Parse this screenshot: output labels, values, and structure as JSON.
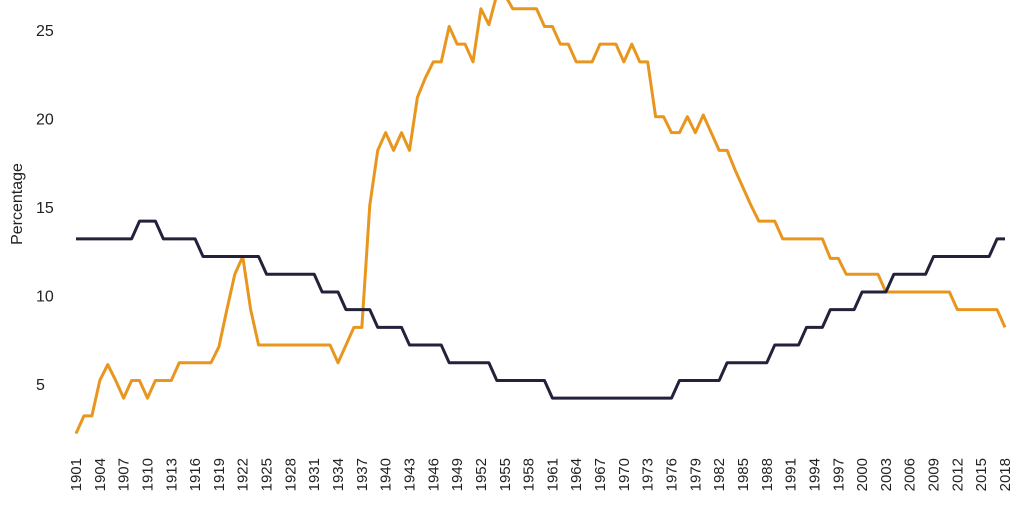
{
  "chart_data": {
    "type": "line",
    "title": "",
    "xlabel": "",
    "ylabel": "Percentage",
    "ylim": [
      1,
      27
    ],
    "y_ticks": [
      5,
      10,
      15,
      20,
      25
    ],
    "x_tick_labels": [
      "1901",
      "1904",
      "1907",
      "1910",
      "1913",
      "1916",
      "1919",
      "1922",
      "1925",
      "1928",
      "1931",
      "1934",
      "1937",
      "1940",
      "1943",
      "1946",
      "1949",
      "1952",
      "1955",
      "1958",
      "1961",
      "1964",
      "1967",
      "1970",
      "1973",
      "1976",
      "1979",
      "1982",
      "1985",
      "1988",
      "1991",
      "1994",
      "1997",
      "2000",
      "2003",
      "2006",
      "2009",
      "2012",
      "2015",
      "2018"
    ],
    "grid": false,
    "legend": "none",
    "series": [
      {
        "color": "#e8961e",
        "points": [
          [
            1901,
            2.2
          ],
          [
            1902,
            3.2
          ],
          [
            1903,
            3.2
          ],
          [
            1904,
            5.2
          ],
          [
            1905,
            6.1
          ],
          [
            1906,
            5.2
          ],
          [
            1907,
            4.2
          ],
          [
            1908,
            5.2
          ],
          [
            1909,
            5.2
          ],
          [
            1910,
            4.2
          ],
          [
            1911,
            5.2
          ],
          [
            1912,
            5.2
          ],
          [
            1913,
            5.2
          ],
          [
            1914,
            6.2
          ],
          [
            1915,
            6.2
          ],
          [
            1916,
            6.2
          ],
          [
            1917,
            6.2
          ],
          [
            1918,
            6.2
          ],
          [
            1919,
            7.1
          ],
          [
            1920,
            9.2
          ],
          [
            1921,
            11.2
          ],
          [
            1922,
            12.2
          ],
          [
            1923,
            9.2
          ],
          [
            1924,
            7.2
          ],
          [
            1925,
            7.2
          ],
          [
            1926,
            7.2
          ],
          [
            1927,
            7.2
          ],
          [
            1928,
            7.2
          ],
          [
            1929,
            7.2
          ],
          [
            1930,
            7.2
          ],
          [
            1931,
            7.2
          ],
          [
            1932,
            7.2
          ],
          [
            1933,
            7.2
          ],
          [
            1934,
            6.2
          ],
          [
            1935,
            7.2
          ],
          [
            1936,
            8.2
          ],
          [
            1937,
            8.2
          ],
          [
            1938,
            15.1
          ],
          [
            1939,
            18.2
          ],
          [
            1940,
            19.2
          ],
          [
            1941,
            18.2
          ],
          [
            1942,
            19.2
          ],
          [
            1943,
            18.2
          ],
          [
            1944,
            21.2
          ],
          [
            1945,
            22.3
          ],
          [
            1946,
            23.2
          ],
          [
            1947,
            23.2
          ],
          [
            1948,
            25.2
          ],
          [
            1949,
            24.2
          ],
          [
            1950,
            24.2
          ],
          [
            1951,
            23.2
          ],
          [
            1952,
            26.2
          ],
          [
            1953,
            25.3
          ],
          [
            1954,
            27.0
          ],
          [
            1955,
            27.0
          ],
          [
            1956,
            26.2
          ],
          [
            1957,
            26.2
          ],
          [
            1958,
            26.2
          ],
          [
            1959,
            26.2
          ],
          [
            1960,
            25.2
          ],
          [
            1961,
            25.2
          ],
          [
            1962,
            24.2
          ],
          [
            1963,
            24.2
          ],
          [
            1964,
            23.2
          ],
          [
            1965,
            23.2
          ],
          [
            1966,
            23.2
          ],
          [
            1967,
            24.2
          ],
          [
            1968,
            24.2
          ],
          [
            1969,
            24.2
          ],
          [
            1970,
            23.2
          ],
          [
            1971,
            24.2
          ],
          [
            1972,
            23.2
          ],
          [
            1973,
            23.2
          ],
          [
            1974,
            20.1
          ],
          [
            1975,
            20.1
          ],
          [
            1976,
            19.2
          ],
          [
            1977,
            19.2
          ],
          [
            1978,
            20.1
          ],
          [
            1979,
            19.2
          ],
          [
            1980,
            20.2
          ],
          [
            1981,
            19.2
          ],
          [
            1982,
            18.2
          ],
          [
            1983,
            18.2
          ],
          [
            1984,
            17.1
          ],
          [
            1985,
            16.1
          ],
          [
            1986,
            15.1
          ],
          [
            1987,
            14.2
          ],
          [
            1988,
            14.2
          ],
          [
            1989,
            14.2
          ],
          [
            1990,
            13.2
          ],
          [
            1991,
            13.2
          ],
          [
            1992,
            13.2
          ],
          [
            1993,
            13.2
          ],
          [
            1994,
            13.2
          ],
          [
            1995,
            13.2
          ],
          [
            1996,
            12.1
          ],
          [
            1997,
            12.1
          ],
          [
            1998,
            11.2
          ],
          [
            1999,
            11.2
          ],
          [
            2000,
            11.2
          ],
          [
            2001,
            11.2
          ],
          [
            2002,
            11.2
          ],
          [
            2003,
            10.2
          ],
          [
            2004,
            10.2
          ],
          [
            2005,
            10.2
          ],
          [
            2006,
            10.2
          ],
          [
            2007,
            10.2
          ],
          [
            2008,
            10.2
          ],
          [
            2009,
            10.2
          ],
          [
            2010,
            10.2
          ],
          [
            2011,
            10.2
          ],
          [
            2012,
            9.2
          ],
          [
            2013,
            9.2
          ],
          [
            2014,
            9.2
          ],
          [
            2015,
            9.2
          ],
          [
            2016,
            9.2
          ],
          [
            2017,
            9.2
          ],
          [
            2018,
            8.2
          ]
        ]
      },
      {
        "color": "#23223a",
        "points": [
          [
            1901,
            13.2
          ],
          [
            1902,
            13.2
          ],
          [
            1903,
            13.2
          ],
          [
            1904,
            13.2
          ],
          [
            1905,
            13.2
          ],
          [
            1906,
            13.2
          ],
          [
            1907,
            13.2
          ],
          [
            1908,
            13.2
          ],
          [
            1909,
            14.2
          ],
          [
            1910,
            14.2
          ],
          [
            1911,
            14.2
          ],
          [
            1912,
            13.2
          ],
          [
            1913,
            13.2
          ],
          [
            1914,
            13.2
          ],
          [
            1915,
            13.2
          ],
          [
            1916,
            13.2
          ],
          [
            1917,
            12.2
          ],
          [
            1918,
            12.2
          ],
          [
            1919,
            12.2
          ],
          [
            1920,
            12.2
          ],
          [
            1921,
            12.2
          ],
          [
            1922,
            12.2
          ],
          [
            1923,
            12.2
          ],
          [
            1924,
            12.2
          ],
          [
            1925,
            11.2
          ],
          [
            1926,
            11.2
          ],
          [
            1927,
            11.2
          ],
          [
            1928,
            11.2
          ],
          [
            1929,
            11.2
          ],
          [
            1930,
            11.2
          ],
          [
            1931,
            11.2
          ],
          [
            1932,
            10.2
          ],
          [
            1933,
            10.2
          ],
          [
            1934,
            10.2
          ],
          [
            1935,
            9.2
          ],
          [
            1936,
            9.2
          ],
          [
            1937,
            9.2
          ],
          [
            1938,
            9.2
          ],
          [
            1939,
            8.2
          ],
          [
            1940,
            8.2
          ],
          [
            1941,
            8.2
          ],
          [
            1942,
            8.2
          ],
          [
            1943,
            7.2
          ],
          [
            1944,
            7.2
          ],
          [
            1945,
            7.2
          ],
          [
            1946,
            7.2
          ],
          [
            1947,
            7.2
          ],
          [
            1948,
            6.2
          ],
          [
            1949,
            6.2
          ],
          [
            1950,
            6.2
          ],
          [
            1951,
            6.2
          ],
          [
            1952,
            6.2
          ],
          [
            1953,
            6.2
          ],
          [
            1954,
            5.2
          ],
          [
            1955,
            5.2
          ],
          [
            1956,
            5.2
          ],
          [
            1957,
            5.2
          ],
          [
            1958,
            5.2
          ],
          [
            1959,
            5.2
          ],
          [
            1960,
            5.2
          ],
          [
            1961,
            4.2
          ],
          [
            1962,
            4.2
          ],
          [
            1963,
            4.2
          ],
          [
            1964,
            4.2
          ],
          [
            1965,
            4.2
          ],
          [
            1966,
            4.2
          ],
          [
            1967,
            4.2
          ],
          [
            1968,
            4.2
          ],
          [
            1969,
            4.2
          ],
          [
            1970,
            4.2
          ],
          [
            1971,
            4.2
          ],
          [
            1972,
            4.2
          ],
          [
            1973,
            4.2
          ],
          [
            1974,
            4.2
          ],
          [
            1975,
            4.2
          ],
          [
            1976,
            4.2
          ],
          [
            1977,
            5.2
          ],
          [
            1978,
            5.2
          ],
          [
            1979,
            5.2
          ],
          [
            1980,
            5.2
          ],
          [
            1981,
            5.2
          ],
          [
            1982,
            5.2
          ],
          [
            1983,
            6.2
          ],
          [
            1984,
            6.2
          ],
          [
            1985,
            6.2
          ],
          [
            1986,
            6.2
          ],
          [
            1987,
            6.2
          ],
          [
            1988,
            6.2
          ],
          [
            1989,
            7.2
          ],
          [
            1990,
            7.2
          ],
          [
            1991,
            7.2
          ],
          [
            1992,
            7.2
          ],
          [
            1993,
            8.2
          ],
          [
            1994,
            8.2
          ],
          [
            1995,
            8.2
          ],
          [
            1996,
            9.2
          ],
          [
            1997,
            9.2
          ],
          [
            1998,
            9.2
          ],
          [
            1999,
            9.2
          ],
          [
            2000,
            10.2
          ],
          [
            2001,
            10.2
          ],
          [
            2002,
            10.2
          ],
          [
            2003,
            10.2
          ],
          [
            2004,
            11.2
          ],
          [
            2005,
            11.2
          ],
          [
            2006,
            11.2
          ],
          [
            2007,
            11.2
          ],
          [
            2008,
            11.2
          ],
          [
            2009,
            12.2
          ],
          [
            2010,
            12.2
          ],
          [
            2011,
            12.2
          ],
          [
            2012,
            12.2
          ],
          [
            2013,
            12.2
          ],
          [
            2014,
            12.2
          ],
          [
            2015,
            12.2
          ],
          [
            2016,
            12.2
          ],
          [
            2017,
            13.2
          ],
          [
            2018,
            13.2
          ]
        ]
      }
    ]
  }
}
